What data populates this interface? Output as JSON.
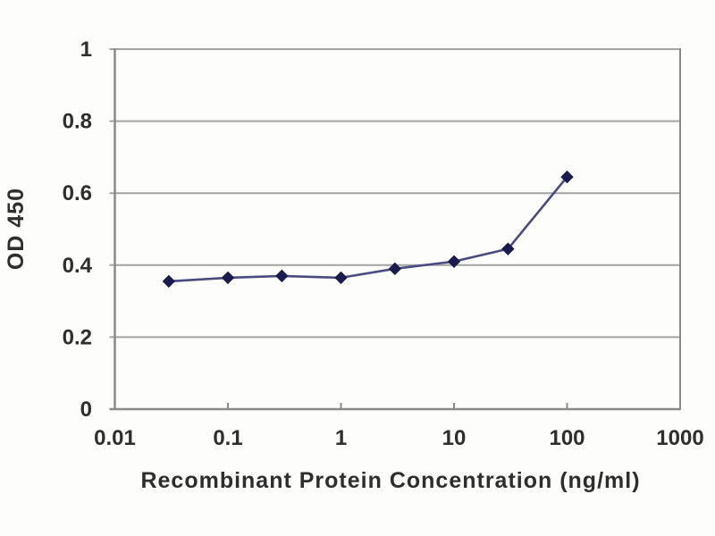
{
  "chart_data": {
    "type": "line",
    "title": "",
    "xlabel": "Recombinant Protein Concentration (ng/ml)",
    "ylabel": "OD 450",
    "x_scale": "log",
    "x": [
      0.03,
      0.1,
      0.3,
      1,
      3,
      10,
      30,
      100
    ],
    "series": [
      {
        "name": "OD450",
        "values": [
          0.355,
          0.365,
          0.37,
          0.365,
          0.39,
          0.41,
          0.445,
          0.645
        ]
      }
    ],
    "xlim": [
      0.01,
      1000
    ],
    "ylim": [
      0,
      1
    ],
    "x_ticks": [
      0.01,
      0.1,
      1,
      10,
      100,
      1000
    ],
    "x_tick_labels": [
      "0.01",
      "0.1",
      "1",
      "10",
      "100",
      "1000"
    ],
    "y_ticks": [
      0,
      0.2,
      0.4,
      0.6,
      0.8,
      1
    ],
    "y_tick_labels": [
      "0",
      "0.2",
      "0.4",
      "0.6",
      "0.8",
      "1"
    ],
    "grid": "horizontal",
    "legend": "none",
    "marker": "diamond",
    "colors": {
      "line": "#4b4b80",
      "marker": "#1b1b4d",
      "grid": "#a3a3a3",
      "frame": "#8a8a8a",
      "text": "#2e2e2e",
      "background": "#fdfdfc"
    }
  }
}
